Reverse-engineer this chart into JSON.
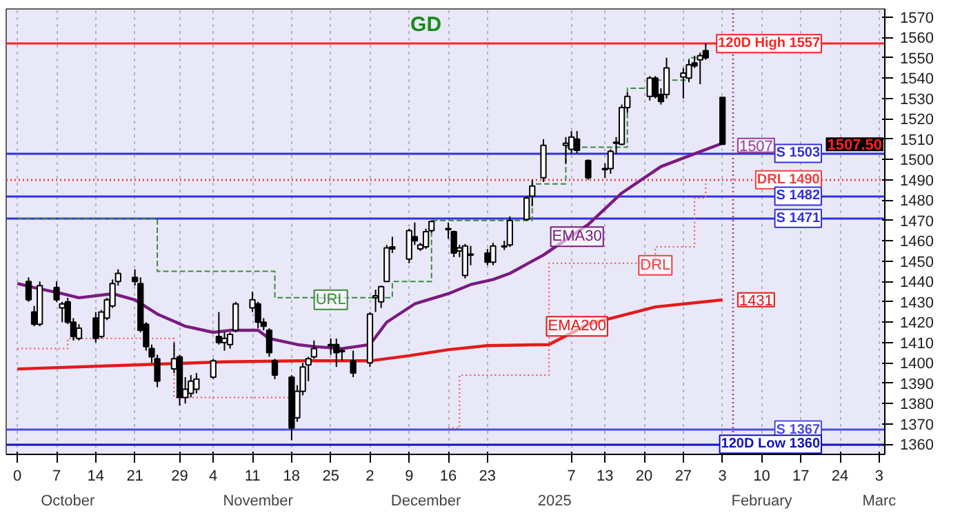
{
  "chart_data": {
    "type": "candlestick",
    "annotations": [
      "GD",
      "1507.50",
      {
        "text": "EMA30",
        "x": "2025-01-08",
        "y": 1462
      },
      {
        "text": "EMA200",
        "x": "2025-01-08",
        "y": 1418
      },
      {
        "text": "DRL",
        "x": "2025-01-22",
        "y": 1448
      },
      {
        "text": "URL",
        "x": "2024-11-25",
        "y": 1431
      },
      {
        "text": "1507",
        "x": "2025-02-09",
        "y": 1507
      },
      {
        "text": "1431",
        "x": "2025-02-09",
        "y": 1431
      }
    ],
    "color": "#000000",
    "x": [
      "2024-10-02",
      "2024-10-03",
      "2024-10-04",
      "2024-10-07",
      "2024-10-08",
      "2024-10-09",
      "2024-10-10",
      "2024-10-11",
      "2024-10-14",
      "2024-10-15",
      "2024-10-16",
      "2024-10-17",
      "2024-10-18",
      "2024-10-21",
      "2024-10-22",
      "2024-10-23",
      "2024-10-24",
      "2024-10-25",
      "2024-10-28",
      "2024-10-29",
      "2024-10-30",
      "2024-10-31",
      "2024-11-01",
      "2024-11-04",
      "2024-11-05",
      "2024-11-06",
      "2024-11-07",
      "2024-11-08",
      "2024-11-11",
      "2024-11-12",
      "2024-11-13",
      "2024-11-14",
      "2024-11-15",
      "2024-11-18",
      "2024-11-19",
      "2024-11-20",
      "2024-11-21",
      "2024-11-22",
      "2024-11-25",
      "2024-11-26",
      "2024-11-27",
      "2024-11-29",
      "2024-12-02",
      "2024-12-03",
      "2024-12-04",
      "2024-12-05",
      "2024-12-06",
      "2024-12-09",
      "2024-12-10",
      "2024-12-11",
      "2024-12-12",
      "2024-12-13",
      "2024-12-16",
      "2024-12-17",
      "2024-12-18",
      "2024-12-19",
      "2024-12-20",
      "2024-12-23",
      "2024-12-24",
      "2024-12-26",
      "2024-12-27",
      "2024-12-30",
      "2024-12-31",
      "2025-01-02",
      "2025-01-06",
      "2025-01-07",
      "2025-01-08",
      "2025-01-10",
      "2025-01-13",
      "2025-01-14",
      "2025-01-15",
      "2025-01-16",
      "2025-01-17",
      "2025-01-21",
      "2025-01-22",
      "2025-01-23",
      "2025-01-24",
      "2025-01-27",
      "2025-01-28",
      "2025-01-29",
      "2025-01-30",
      "2025-01-31",
      "2025-02-03"
    ],
    "ohlc": [
      [
        1440,
        1442,
        1430,
        1431
      ],
      [
        1425,
        1428,
        1418,
        1419
      ],
      [
        1419,
        1440,
        1418,
        1438
      ],
      [
        1437,
        1440,
        1430,
        1431
      ],
      [
        1427,
        1430,
        1420,
        1429
      ],
      [
        1430,
        1432,
        1419,
        1420
      ],
      [
        1420,
        1422,
        1411,
        1413
      ],
      [
        1412,
        1419,
        1411,
        1417
      ],
      [
        1422,
        1425,
        1410,
        1412
      ],
      [
        1413,
        1426,
        1412,
        1425
      ],
      [
        1422,
        1432,
        1421,
        1431
      ],
      [
        1428,
        1441,
        1427,
        1439
      ],
      [
        1440,
        1446,
        1438,
        1444
      ],
      [
        1442,
        1446,
        1438,
        1440
      ],
      [
        1439,
        1442,
        1415,
        1416
      ],
      [
        1419,
        1420,
        1406,
        1408
      ],
      [
        1407,
        1409,
        1400,
        1403
      ],
      [
        1402,
        1404,
        1388,
        1391
      ],
      [
        1397,
        1410,
        1395,
        1402
      ],
      [
        1403,
        1404,
        1379,
        1383
      ],
      [
        1383,
        1393,
        1380,
        1387
      ],
      [
        1385,
        1394,
        1383,
        1391
      ],
      [
        1387,
        1395,
        1385,
        1392
      ],
      [
        1393,
        1402,
        1392,
        1401
      ],
      [
        1413,
        1425,
        1409,
        1410
      ],
      [
        1410,
        1415,
        1406,
        1412
      ],
      [
        1409,
        1415,
        1407,
        1414
      ],
      [
        1416,
        1430,
        1415,
        1429
      ],
      [
        1427,
        1435,
        1425,
        1431
      ],
      [
        1429,
        1430,
        1417,
        1420
      ],
      [
        1420,
        1422,
        1416,
        1418
      ],
      [
        1416,
        1417,
        1403,
        1405
      ],
      [
        1401,
        1402,
        1392,
        1394
      ],
      [
        1393,
        1394,
        1362,
        1368
      ],
      [
        1373,
        1389,
        1371,
        1386
      ],
      [
        1386,
        1400,
        1384,
        1398
      ],
      [
        1399,
        1403,
        1391,
        1402
      ],
      [
        1403,
        1411,
        1402,
        1407
      ],
      [
        1409,
        1412,
        1404,
        1408.5
      ],
      [
        1409,
        1412,
        1398,
        1405
      ],
      [
        1406,
        1407,
        1401,
        1405.5
      ],
      [
        1401,
        1406,
        1393,
        1395
      ],
      [
        1400,
        1425,
        1398,
        1424
      ],
      [
        1432,
        1436,
        1425,
        1433
      ],
      [
        1430,
        1438,
        1427,
        1437.5
      ],
      [
        1440,
        1458,
        1440,
        1456.5
      ],
      [
        1457,
        1462,
        1454,
        1456
      ],
      [
        1451,
        1466,
        1449,
        1465
      ],
      [
        1462,
        1469,
        1458,
        1460
      ],
      [
        1456,
        1459,
        1455,
        1458
      ],
      [
        1457,
        1466,
        1456,
        1464.5
      ],
      [
        1465,
        1470,
        1464,
        1469.5
      ],
      [
        1466,
        1469,
        1461,
        1465.5
      ],
      [
        1464.5,
        1465,
        1452,
        1454
      ],
      [
        1455,
        1458,
        1452,
        1456.5
      ],
      [
        1443,
        1458.5,
        1441.5,
        1457.5
      ],
      [
        1453.5,
        1457.5,
        1448,
        1453
      ],
      [
        1454,
        1456,
        1448,
        1449.5
      ],
      [
        1449.5,
        1459,
        1448,
        1457.5
      ],
      [
        1457,
        1460,
        1455.5,
        1457.5
      ],
      [
        1458,
        1472,
        1457,
        1470
      ],
      [
        1470.5,
        1482,
        1470,
        1481
      ],
      [
        1482,
        1490,
        1477,
        1487
      ],
      [
        1491,
        1510,
        1489,
        1507
      ],
      [
        1507,
        1511,
        1498,
        1508
      ],
      [
        1505,
        1514,
        1503,
        1511
      ],
      [
        1510,
        1514,
        1503,
        1504.5
      ],
      [
        1499.5,
        1500,
        1490,
        1491
      ],
      [
        1495,
        1498,
        1491,
        1495.5
      ],
      [
        1495.5,
        1505,
        1493,
        1504
      ],
      [
        1508,
        1511,
        1503,
        1508.5
      ],
      [
        1507.5,
        1527,
        1507,
        1525.5
      ],
      [
        1525.5,
        1533,
        1523,
        1531
      ],
      [
        1531,
        1541,
        1529,
        1540
      ],
      [
        1540,
        1541,
        1530,
        1531
      ],
      [
        1532,
        1535,
        1527,
        1528.5
      ],
      [
        1532,
        1550,
        1530,
        1545
      ],
      [
        1540.5,
        1545,
        1530,
        1542.5
      ],
      [
        1540,
        1549,
        1538,
        1546.5
      ],
      [
        1547.5,
        1551,
        1545,
        1546
      ],
      [
        1549,
        1552.5,
        1537,
        1551
      ],
      [
        1553.5,
        1557,
        1549,
        1550
      ],
      [
        1530.5,
        1530.5,
        1507.5,
        1507.5
      ]
    ],
    "series": [
      {
        "type": "line",
        "color": "#7a1a80",
        "line_style": "solid",
        "x": [
          "2024-09-30",
          "2024-10-03",
          "2024-10-08",
          "2024-10-11",
          "2024-10-17",
          "2024-10-21",
          "2024-10-25",
          "2024-10-30",
          "2024-11-04",
          "2024-11-07",
          "2024-11-12",
          "2024-11-14",
          "2024-11-19",
          "2024-11-22",
          "2024-11-27",
          "2024-12-02",
          "2024-12-05",
          "2024-12-10",
          "2024-12-16",
          "2024-12-20",
          "2024-12-24",
          "2024-12-27",
          "2025-01-02",
          "2025-01-10",
          "2025-01-16",
          "2025-01-23",
          "2025-02-03"
        ],
        "values": [
          1439,
          1437,
          1434,
          1432,
          1434,
          1431,
          1424,
          1418,
          1415,
          1416,
          1416,
          1412,
          1409,
          1408,
          1407,
          1409,
          1420,
          1429,
          1434,
          1438.5,
          1441,
          1444,
          1453,
          1468,
          1483.5,
          1496.5,
          1508
        ]
      },
      {
        "type": "line",
        "color": "#e41a1a",
        "line_style": "solid",
        "x": [
          "2024-09-30",
          "2024-10-21",
          "2024-11-06",
          "2024-11-20",
          "2024-12-02",
          "2024-12-09",
          "2024-12-16",
          "2024-12-23",
          "2025-01-03",
          "2025-01-10",
          "2025-01-22",
          "2025-02-03"
        ],
        "values": [
          1397,
          1399,
          1400.5,
          1401,
          1401,
          1403.5,
          1406.5,
          1408.5,
          1409,
          1419,
          1427.5,
          1431
        ]
      },
      {
        "type": "step",
        "color": "#3a8a3a",
        "line_style": "dashed",
        "x": [
          "2024-09-30",
          "2024-10-22",
          "2024-10-25",
          "2024-11-12",
          "2024-11-15",
          "2024-12-04",
          "2024-12-06",
          "2024-12-13",
          "2024-12-27",
          "2024-12-31",
          "2025-01-06",
          "2025-01-17",
          "2025-01-22",
          "2025-01-28",
          "2025-01-31"
        ],
        "values": [
          1471,
          1471,
          1445,
          1445,
          1432,
          1432,
          1440,
          1470,
          1470,
          1488,
          1506,
          1535,
          1539,
          1550,
          1551
        ]
      },
      {
        "type": "step",
        "color": "#f05050",
        "line_style": "dotted",
        "x": [
          "2024-09-30",
          "2024-10-09",
          "2024-10-28",
          "2024-11-18",
          "2024-11-19",
          "2024-12-16",
          "2024-12-18",
          "2025-01-03",
          "2025-01-22",
          "2025-01-29",
          "2025-01-31"
        ],
        "values": [
          1407,
          1412,
          1383,
          1383,
          null,
          1368,
          1394,
          1449,
          1457,
          1481,
          1490
        ]
      }
    ],
    "ref_lines": [
      {
        "axis": "y",
        "value": 1557,
        "label": "120D High 1557",
        "color": "#ff2020",
        "line_style": "solid"
      },
      {
        "axis": "y",
        "value": 1503,
        "label": "S 1503",
        "color": "#3030e0",
        "line_style": "solid"
      },
      {
        "axis": "y",
        "value": 1490,
        "label": "DRL 1490",
        "color": "#f04040",
        "line_style": "dotted"
      },
      {
        "axis": "y",
        "value": 1482,
        "label": "S 1482",
        "color": "#3030e0",
        "line_style": "solid"
      },
      {
        "axis": "y",
        "value": 1471,
        "label": "S 1471",
        "color": "#3030e0",
        "line_style": "solid"
      },
      {
        "axis": "y",
        "value": 1367,
        "label": "S 1367",
        "color": "#4a4ae0",
        "line_style": "solid"
      },
      {
        "axis": "y",
        "value": 1360,
        "label": "120D Low 1360",
        "color": "#1010c0",
        "line_style": "solid"
      },
      {
        "axis": "x",
        "value": "2025-02-05",
        "color": "#9a3a9a",
        "line_style": "dotted"
      }
    ],
    "xlim": [
      "2024-09-28",
      "2025-03-04"
    ],
    "x2lim": [
      "2024-09-28",
      "2025-03-04"
    ],
    "x2ticks": [
      {
        "value": "2024-10-09",
        "label": "October"
      },
      {
        "value": "2024-11-12",
        "label": "November"
      },
      {
        "value": "2024-12-12",
        "label": "December"
      },
      {
        "value": "2025-01-04",
        "label": "2025"
      },
      {
        "value": "2025-02-10",
        "label": "February"
      },
      {
        "value": "2025-03-03",
        "label": "Marc"
      }
    ],
    "xticks": [
      {
        "value": "2024-09-30",
        "label": "0"
      },
      {
        "value": "2024-10-07",
        "label": "7"
      },
      {
        "value": "2024-10-14",
        "label": "14"
      },
      {
        "value": "2024-10-21",
        "label": "21"
      },
      {
        "value": "2024-10-29",
        "label": "29"
      },
      {
        "value": "2024-11-04",
        "label": "4"
      },
      {
        "value": "2024-11-11",
        "label": "11"
      },
      {
        "value": "2024-11-18",
        "label": "18"
      },
      {
        "value": "2024-11-25",
        "label": "25"
      },
      {
        "value": "2024-12-02",
        "label": "2"
      },
      {
        "value": "2024-12-09",
        "label": "9"
      },
      {
        "value": "2024-12-16",
        "label": "16"
      },
      {
        "value": "2024-12-23",
        "label": "23"
      },
      {
        "value": "2025-01-07",
        "label": "7"
      },
      {
        "value": "2025-01-13",
        "label": "13"
      },
      {
        "value": "2025-01-20",
        "label": "20"
      },
      {
        "value": "2025-01-27",
        "label": "27"
      },
      {
        "value": "2025-02-03",
        "label": "3"
      },
      {
        "value": "2025-02-10",
        "label": "10"
      },
      {
        "value": "2025-02-17",
        "label": "17"
      },
      {
        "value": "2025-02-24",
        "label": "24"
      },
      {
        "value": "2025-03-03",
        "label": "3"
      }
    ],
    "ylim": [
      1355,
      1574
    ],
    "yticks": [
      1360,
      1370,
      1380,
      1390,
      1400,
      1410,
      1420,
      1430,
      1440,
      1450,
      1460,
      1470,
      1480,
      1490,
      1500,
      1510,
      1520,
      1530,
      1540,
      1550,
      1560,
      1570
    ],
    "grid": "x"
  }
}
